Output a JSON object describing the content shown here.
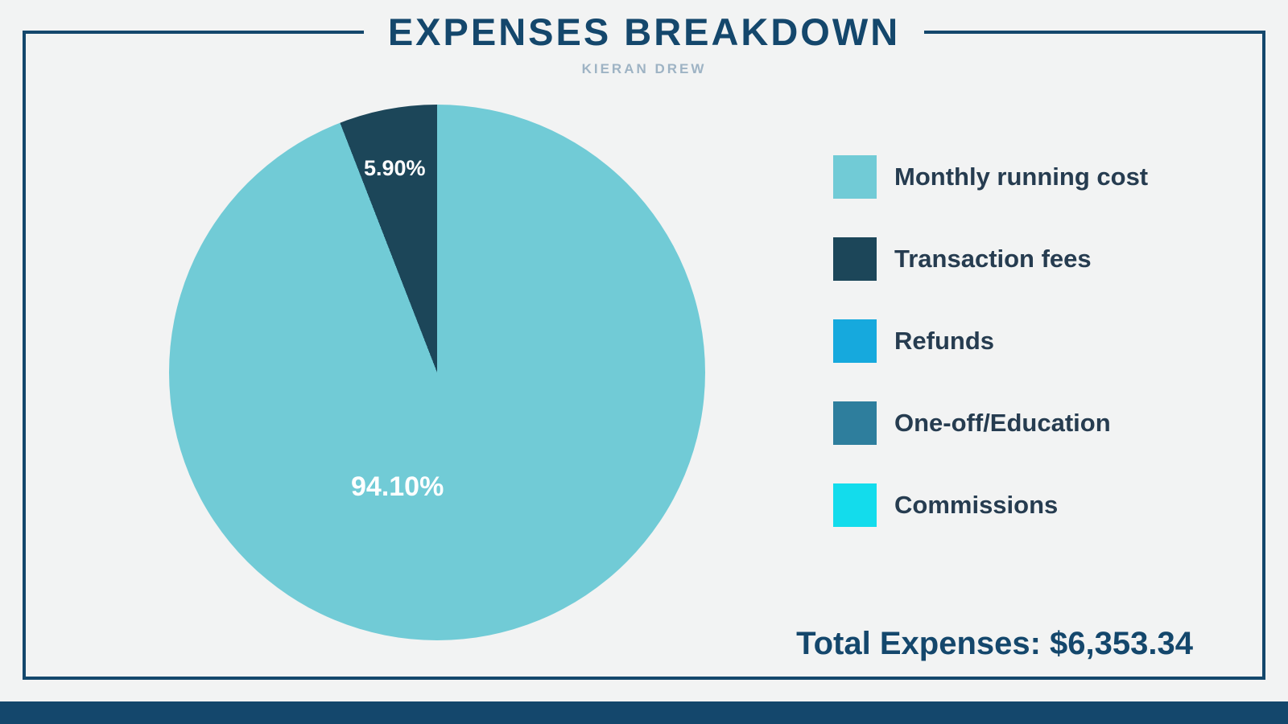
{
  "page": {
    "title": "EXPENSES BREAKDOWN",
    "subtitle": "KIERAN DREW",
    "total_text": "Total Expenses: $6,353.34"
  },
  "colors": {
    "background": "#F2F3F3",
    "frame_navy": "#14476C",
    "legend_text": "#263C50",
    "subtitle_gray": "#9EB3C4",
    "slice_label_white": "#FFFFFF"
  },
  "chart_data": {
    "type": "pie",
    "title": "Expenses Breakdown",
    "legend_position": "right",
    "start_angle_deg": 0,
    "direction": "clockwise",
    "total_label": "Total Expenses: $6,353.34",
    "total_value": 6353.34,
    "series": [
      {
        "label": "Monthly running cost",
        "value": 94.1,
        "display": "94.10%",
        "color": "#71CBD6"
      },
      {
        "label": "Transaction fees",
        "value": 5.9,
        "display": "5.90%",
        "color": "#1C4659"
      },
      {
        "label": "Refunds",
        "value": 0,
        "display": "",
        "color": "#16A9DD"
      },
      {
        "label": "One-off/Education",
        "value": 0,
        "display": "",
        "color": "#2E7E9D"
      },
      {
        "label": "Commissions",
        "value": 0,
        "display": "",
        "color": "#13DCEC"
      }
    ]
  }
}
